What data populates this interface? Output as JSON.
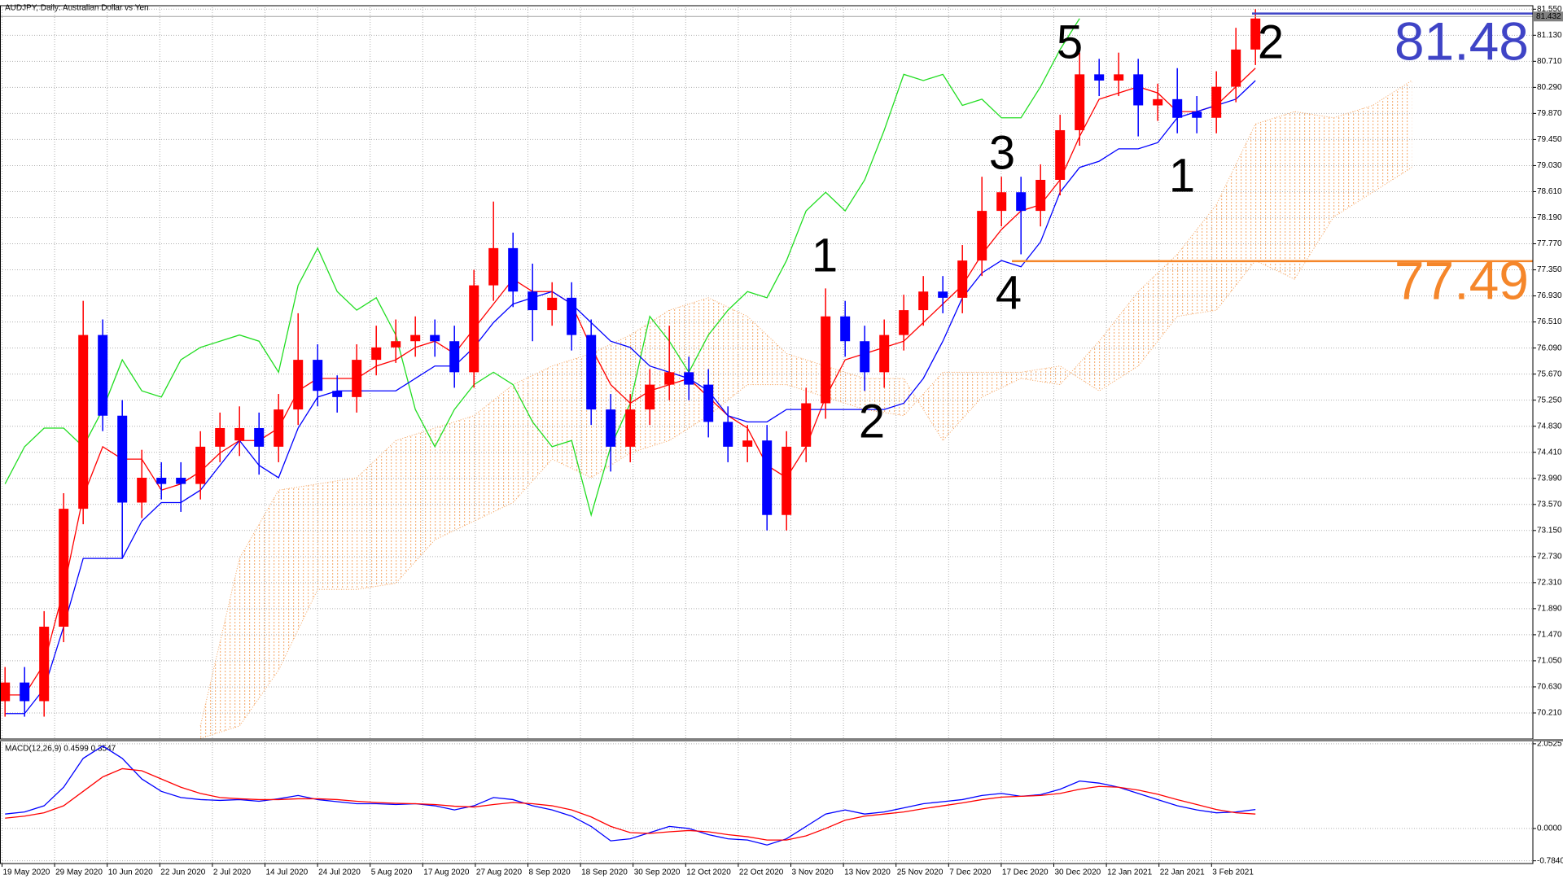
{
  "chart_data": {
    "type": "candlestick",
    "title": "AUDJPY, Daily:  Australian Dollar vs Yen",
    "ylim": [
      69.79,
      81.58
    ],
    "yticks": [
      {
        "value": 81.55,
        "label": "81.550"
      },
      {
        "value": 81.13,
        "label": "81.130"
      },
      {
        "value": 80.71,
        "label": "80.710"
      },
      {
        "value": 80.29,
        "label": "80.290"
      },
      {
        "value": 79.87,
        "label": "79.870"
      },
      {
        "value": 79.45,
        "label": "79.450"
      },
      {
        "value": 79.03,
        "label": "79.030"
      },
      {
        "value": 78.61,
        "label": "78.610"
      },
      {
        "value": 78.19,
        "label": "78.190"
      },
      {
        "value": 77.77,
        "label": "77.770"
      },
      {
        "value": 77.35,
        "label": "77.350"
      },
      {
        "value": 76.93,
        "label": "76.930"
      },
      {
        "value": 76.51,
        "label": "76.510"
      },
      {
        "value": 76.09,
        "label": "76.090"
      },
      {
        "value": 75.67,
        "label": "75.670"
      },
      {
        "value": 75.25,
        "label": "75.250"
      },
      {
        "value": 74.83,
        "label": "74.830"
      },
      {
        "value": 74.41,
        "label": "74.410"
      },
      {
        "value": 73.99,
        "label": "73.990"
      },
      {
        "value": 73.57,
        "label": "73.570"
      },
      {
        "value": 73.15,
        "label": "73.150"
      },
      {
        "value": 72.73,
        "label": "72.730"
      },
      {
        "value": 72.31,
        "label": "72.310"
      },
      {
        "value": 71.89,
        "label": "71.890"
      },
      {
        "value": 71.47,
        "label": "71.470"
      },
      {
        "value": 71.05,
        "label": "71.050"
      },
      {
        "value": 70.63,
        "label": "70.630"
      },
      {
        "value": 70.21,
        "label": "70.210"
      }
    ],
    "current_price": {
      "value": 81.432,
      "label": "81.432"
    },
    "grid": true,
    "up_color": "#ff0000",
    "down_color": "#0000ff",
    "candles": [
      [
        70.4,
        70.95,
        70.15,
        70.7
      ],
      [
        70.7,
        70.95,
        70.15,
        70.4
      ],
      [
        70.4,
        71.85,
        70.15,
        71.6
      ],
      [
        71.6,
        73.75,
        71.35,
        73.5
      ],
      [
        73.5,
        76.85,
        73.25,
        76.3
      ],
      [
        76.3,
        76.55,
        74.75,
        75.0
      ],
      [
        75.0,
        75.25,
        72.7,
        73.6
      ],
      [
        73.6,
        74.45,
        73.35,
        74.0
      ],
      [
        74.0,
        74.25,
        73.65,
        73.9
      ],
      [
        74.0,
        74.25,
        73.45,
        73.9
      ],
      [
        73.9,
        74.75,
        73.65,
        74.5
      ],
      [
        74.5,
        75.05,
        74.25,
        74.8
      ],
      [
        74.6,
        75.15,
        74.35,
        74.8
      ],
      [
        74.8,
        75.05,
        74.05,
        74.5
      ],
      [
        74.5,
        75.35,
        74.25,
        75.1
      ],
      [
        75.1,
        76.65,
        74.85,
        75.9
      ],
      [
        75.9,
        76.15,
        75.15,
        75.4
      ],
      [
        75.4,
        75.65,
        75.05,
        75.3
      ],
      [
        75.3,
        76.15,
        75.05,
        75.9
      ],
      [
        75.9,
        76.45,
        75.65,
        76.1
      ],
      [
        76.1,
        76.55,
        75.85,
        76.2
      ],
      [
        76.2,
        76.6,
        75.95,
        76.3
      ],
      [
        76.3,
        76.55,
        75.95,
        76.2
      ],
      [
        76.2,
        76.45,
        75.45,
        75.7
      ],
      [
        75.7,
        77.35,
        75.45,
        77.1
      ],
      [
        77.1,
        78.45,
        76.85,
        77.7
      ],
      [
        77.7,
        77.95,
        76.75,
        77.0
      ],
      [
        77.0,
        77.45,
        76.2,
        76.7
      ],
      [
        76.7,
        77.15,
        76.45,
        76.9
      ],
      [
        76.9,
        77.15,
        76.05,
        76.3
      ],
      [
        76.3,
        76.55,
        74.85,
        75.1
      ],
      [
        75.1,
        75.35,
        74.1,
        74.5
      ],
      [
        74.5,
        75.35,
        74.25,
        75.1
      ],
      [
        75.1,
        75.75,
        74.85,
        75.5
      ],
      [
        75.5,
        76.45,
        75.25,
        75.7
      ],
      [
        75.7,
        75.95,
        75.25,
        75.5
      ],
      [
        75.5,
        75.75,
        74.65,
        74.9
      ],
      [
        74.9,
        75.15,
        74.25,
        74.5
      ],
      [
        74.5,
        74.85,
        74.25,
        74.6
      ],
      [
        74.6,
        74.85,
        73.15,
        73.4
      ],
      [
        73.4,
        74.75,
        73.15,
        74.5
      ],
      [
        74.5,
        75.45,
        74.25,
        75.2
      ],
      [
        75.2,
        77.05,
        74.95,
        76.6
      ],
      [
        76.6,
        76.85,
        75.95,
        76.2
      ],
      [
        76.2,
        76.45,
        75.4,
        75.7
      ],
      [
        75.7,
        76.55,
        75.45,
        76.3
      ],
      [
        76.3,
        76.95,
        76.05,
        76.7
      ],
      [
        76.7,
        77.25,
        76.45,
        77.0
      ],
      [
        77.0,
        77.25,
        76.65,
        76.9
      ],
      [
        76.9,
        77.75,
        76.65,
        77.5
      ],
      [
        77.5,
        78.85,
        77.25,
        78.3
      ],
      [
        78.3,
        78.85,
        78.05,
        78.6
      ],
      [
        78.6,
        78.85,
        77.6,
        78.3
      ],
      [
        78.3,
        79.05,
        78.05,
        78.8
      ],
      [
        78.8,
        79.85,
        78.55,
        79.6
      ],
      [
        79.6,
        80.85,
        79.35,
        80.5
      ],
      [
        80.5,
        80.75,
        80.15,
        80.4
      ],
      [
        80.4,
        80.85,
        80.15,
        80.5
      ],
      [
        80.5,
        80.75,
        79.5,
        80.0
      ],
      [
        80.0,
        80.35,
        79.75,
        80.1
      ],
      [
        80.1,
        80.6,
        79.55,
        79.8
      ],
      [
        79.9,
        80.15,
        79.55,
        79.8
      ],
      [
        79.8,
        80.55,
        79.55,
        80.3
      ],
      [
        80.3,
        81.25,
        80.05,
        80.9
      ],
      [
        80.9,
        81.55,
        80.65,
        81.4
      ]
    ],
    "series": [
      {
        "color": "#ff0000",
        "values": [
          70.5,
          70.5,
          71.0,
          72.2,
          73.7,
          74.5,
          74.3,
          74.3,
          73.8,
          73.9,
          74.1,
          74.4,
          74.6,
          74.6,
          74.8,
          75.4,
          75.6,
          75.6,
          75.6,
          75.8,
          75.9,
          76.1,
          76.2,
          76.0,
          76.4,
          76.8,
          77.2,
          77.0,
          77.0,
          76.8,
          76.1,
          75.5,
          75.2,
          75.4,
          75.5,
          75.6,
          75.3,
          75.0,
          74.8,
          74.2,
          74.0,
          74.5,
          75.3,
          75.9,
          76.0,
          76.1,
          76.2,
          76.5,
          76.8,
          77.1,
          77.6,
          78.0,
          78.3,
          78.4,
          78.8,
          79.5,
          80.1,
          80.2,
          80.3,
          80.2,
          79.9,
          79.9,
          80.0,
          80.3,
          80.6
        ]
      },
      {
        "color": "#0000ff",
        "values": [
          70.2,
          70.2,
          70.6,
          71.6,
          72.7,
          72.7,
          72.7,
          73.3,
          73.6,
          73.6,
          73.8,
          74.2,
          74.6,
          74.2,
          74.0,
          74.8,
          75.3,
          75.4,
          75.4,
          75.4,
          75.4,
          75.6,
          75.8,
          75.8,
          76.1,
          76.5,
          76.8,
          76.9,
          77.0,
          76.8,
          76.5,
          76.2,
          76.1,
          75.8,
          75.7,
          75.6,
          75.4,
          75.0,
          74.9,
          74.9,
          75.1,
          75.1,
          75.1,
          75.1,
          75.1,
          75.1,
          75.2,
          75.6,
          76.2,
          76.9,
          77.3,
          77.5,
          77.4,
          77.8,
          78.6,
          79.0,
          79.1,
          79.3,
          79.3,
          79.4,
          79.8,
          79.9,
          80.0,
          80.1,
          80.4
        ]
      }
    ],
    "lagging_color": "#22dd22",
    "cloud": {
      "color": "#f4a460",
      "x": [
        10,
        12,
        14,
        16,
        18,
        20,
        22,
        24,
        26,
        28,
        30,
        32,
        34,
        36,
        38,
        40,
        42,
        44,
        46,
        48,
        50,
        52,
        54,
        56,
        58,
        60,
        62,
        64,
        66,
        68,
        70,
        72
      ],
      "span_a": [
        70.0,
        72.7,
        73.8,
        73.9,
        74.0,
        74.6,
        74.8,
        75.0,
        75.5,
        75.8,
        76.0,
        76.3,
        76.7,
        76.9,
        76.6,
        76.0,
        75.8,
        75.6,
        75.6,
        74.6,
        75.3,
        75.6,
        75.5,
        76.2,
        77.0,
        77.6,
        78.4,
        79.7,
        79.9,
        79.8,
        80.0,
        80.4
      ],
      "span_b": [
        69.8,
        70.0,
        70.9,
        72.2,
        72.2,
        72.3,
        73.0,
        73.3,
        73.6,
        74.3,
        74.0,
        74.4,
        74.6,
        75.0,
        75.5,
        75.5,
        75.3,
        75.1,
        75.0,
        75.7,
        75.7,
        75.7,
        75.8,
        75.4,
        75.8,
        76.6,
        76.7,
        77.5,
        77.2,
        78.2,
        78.6,
        79.0
      ]
    },
    "levels": [
      {
        "value": 81.48,
        "color": "#3f44c6"
      },
      {
        "value": 77.49,
        "color": "#f5862a"
      }
    ],
    "annotations": [
      "5",
      "2",
      "3",
      "1",
      "1",
      "4",
      "2"
    ],
    "xtick_labels": [
      "19 May 2020",
      "29 May 2020",
      "10 Jun 2020",
      "22 Jun 2020",
      "2 Jul 2020",
      "14 Jul 2020",
      "24 Jul 2020",
      "5 Aug 2020",
      "17 Aug 2020",
      "27 Aug 2020",
      "8 Sep 2020",
      "18 Sep 2020",
      "30 Sep 2020",
      "12 Oct 2020",
      "22 Oct 2020",
      "3 Nov 2020",
      "13 Nov 2020",
      "25 Nov 2020",
      "7 Dec 2020",
      "17 Dec 2020",
      "30 Dec 2020",
      "12 Jan 2021",
      "22 Jan 2021",
      "3 Feb 2021"
    ],
    "macd": {
      "label": "MACD(12,26,9) 0.4599 0.3547",
      "ylim": [
        -0.85,
        2.09
      ],
      "yticks": [
        {
          "value": 2.0525,
          "label": "2.0525"
        },
        {
          "value": 0,
          "label": "0.0000"
        },
        {
          "value": -0.784,
          "label": "-0.7840"
        }
      ],
      "main": {
        "color": "#0000ff",
        "values": [
          0.35,
          0.4,
          0.55,
          1.0,
          1.7,
          2.0,
          1.7,
          1.2,
          0.9,
          0.75,
          0.7,
          0.68,
          0.7,
          0.66,
          0.72,
          0.8,
          0.7,
          0.65,
          0.6,
          0.6,
          0.58,
          0.6,
          0.55,
          0.45,
          0.55,
          0.75,
          0.7,
          0.55,
          0.45,
          0.3,
          0.05,
          -0.3,
          -0.25,
          -0.1,
          0.05,
          0.0,
          -0.15,
          -0.25,
          -0.28,
          -0.4,
          -0.25,
          0.05,
          0.35,
          0.45,
          0.35,
          0.4,
          0.5,
          0.6,
          0.65,
          0.7,
          0.8,
          0.85,
          0.78,
          0.82,
          0.95,
          1.15,
          1.1,
          1.0,
          0.85,
          0.7,
          0.55,
          0.45,
          0.38,
          0.4,
          0.46
        ]
      },
      "signal": {
        "color": "#ff0000",
        "values": [
          0.25,
          0.3,
          0.38,
          0.55,
          0.9,
          1.25,
          1.45,
          1.4,
          1.2,
          1.0,
          0.85,
          0.75,
          0.72,
          0.7,
          0.7,
          0.72,
          0.72,
          0.7,
          0.66,
          0.63,
          0.61,
          0.6,
          0.58,
          0.54,
          0.52,
          0.58,
          0.63,
          0.6,
          0.55,
          0.45,
          0.28,
          0.05,
          -0.1,
          -0.12,
          -0.08,
          -0.05,
          -0.08,
          -0.15,
          -0.2,
          -0.28,
          -0.28,
          -0.18,
          0.0,
          0.2,
          0.3,
          0.35,
          0.4,
          0.48,
          0.55,
          0.62,
          0.7,
          0.76,
          0.78,
          0.8,
          0.85,
          0.95,
          1.02,
          1.0,
          0.93,
          0.83,
          0.7,
          0.58,
          0.46,
          0.38,
          0.35
        ]
      }
    }
  }
}
